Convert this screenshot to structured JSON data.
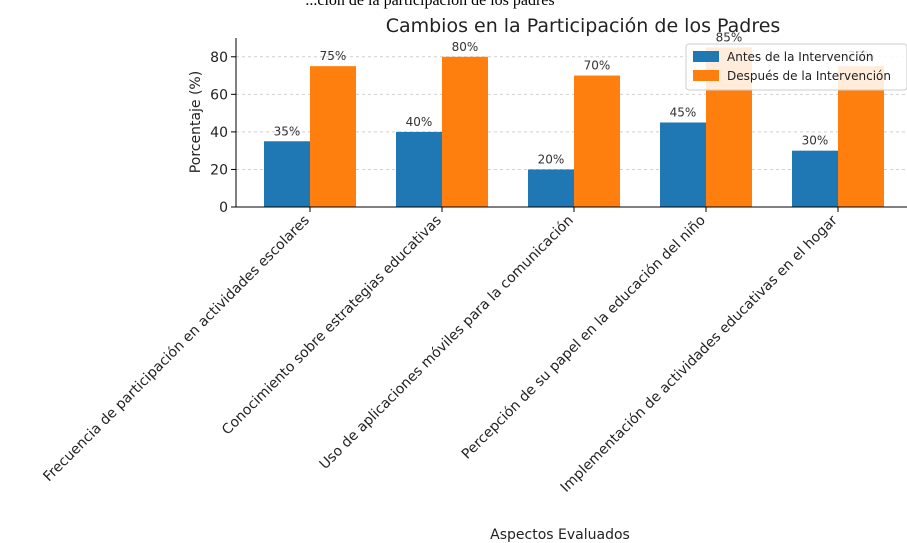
{
  "header_fragment": "...ción de la participación de los padres",
  "chart_data": {
    "type": "bar",
    "title": "Cambios en la Participación de los Padres",
    "xlabel": "Aspectos Evaluados",
    "ylabel": "Porcentaje (%)",
    "ylim": [
      0,
      90
    ],
    "yticks": [
      0,
      20,
      40,
      60,
      80
    ],
    "grid": true,
    "legend_position": "top-right",
    "categories": [
      "Frecuencia de participación en actividades escolares",
      "Conocimiento sobre estrategias educativas",
      "Uso de aplicaciones móviles para la comunicación",
      "Percepción de su papel en la educación del niño",
      "Implementación de actividades educativas en el hogar"
    ],
    "series": [
      {
        "name": "Antes de la Intervención",
        "color": "#1f77b4",
        "values": [
          35,
          40,
          20,
          45,
          30
        ]
      },
      {
        "name": "Después de la Intervención",
        "color": "#ff7f0e",
        "values": [
          75,
          80,
          70,
          85,
          75
        ]
      }
    ],
    "value_suffix": "%"
  }
}
